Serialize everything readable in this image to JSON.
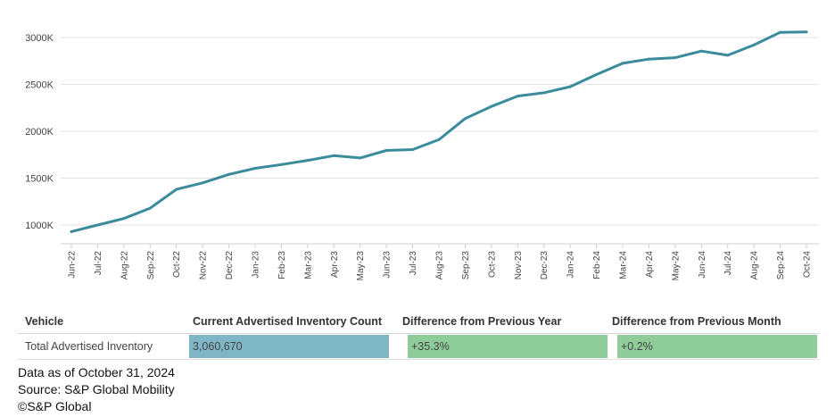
{
  "chart_data": {
    "type": "line",
    "title": "",
    "xlabel": "",
    "ylabel": "",
    "ylim": [
      800,
      3100
    ],
    "yticks": [
      1000,
      1500,
      2000,
      2500,
      3000
    ],
    "ytick_labels": [
      "1000K",
      "1500K",
      "2000K",
      "2500K",
      "3000K"
    ],
    "categories": [
      "Jun-22",
      "Jul-22",
      "Aug-22",
      "Sep-22",
      "Oct-22",
      "Nov-22",
      "Dec-22",
      "Jan-23",
      "Feb-23",
      "Mar-23",
      "Apr-23",
      "May-23",
      "Jun-23",
      "Jul-23",
      "Aug-23",
      "Sep-23",
      "Oct-23",
      "Nov-23",
      "Dec-23",
      "Jan-24",
      "Feb-24",
      "Mar-24",
      "Apr-24",
      "May-24",
      "Jun-24",
      "Jul-24",
      "Aug-24",
      "Sep-24",
      "Oct-24"
    ],
    "series": [
      {
        "name": "Total Advertised Inventory",
        "color": "#3a8b9c",
        "values": [
          930,
          1000,
          1070,
          1180,
          1380,
          1450,
          1540,
          1605,
          1645,
          1690,
          1740,
          1715,
          1795,
          1805,
          1910,
          2135,
          2265,
          2375,
          2410,
          2475,
          2605,
          2725,
          2770,
          2785,
          2855,
          2810,
          2920,
          3055,
          3060
        ]
      }
    ]
  },
  "table": {
    "headers": [
      "Vehicle",
      "Current Advertised Inventory Count",
      "Difference from Previous Year",
      "Difference from Previous Month"
    ],
    "row": {
      "vehicle": "Total Advertised Inventory",
      "count": "3,060,670",
      "yoy": "+35.3%",
      "mom": "+0.2%"
    },
    "colors": {
      "count_bar": "#7eb6c7",
      "diff_bar": "#8ecc9a"
    }
  },
  "notes": {
    "as_of": "Data as of October 31, 2024",
    "source": "Source: S&P Global Mobility",
    "copyright": "©S&P Global"
  }
}
